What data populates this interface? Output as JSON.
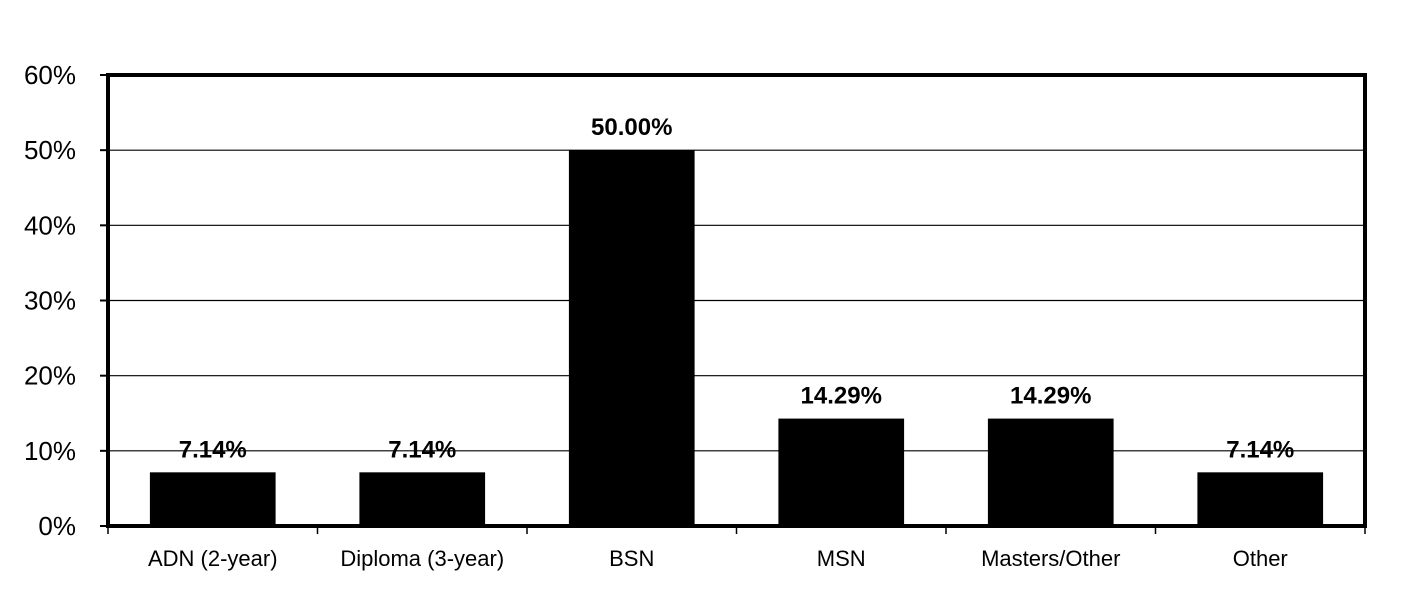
{
  "chart_data": {
    "type": "bar",
    "title": "",
    "xlabel": "",
    "ylabel": "",
    "categories": [
      "ADN (2-year)",
      "Diploma (3-year)",
      "BSN",
      "MSN",
      "Masters/Other",
      "Other"
    ],
    "values": [
      7.14,
      7.14,
      50.0,
      14.29,
      14.29,
      7.14
    ],
    "data_labels": [
      "7.14%",
      "7.14%",
      "50.00%",
      "14.29%",
      "14.29%",
      "7.14%"
    ],
    "ylim": [
      0,
      60
    ],
    "yticks": [
      0,
      10,
      20,
      30,
      40,
      50,
      60
    ],
    "ytick_labels": [
      "0%",
      "10%",
      "20%",
      "30%",
      "40%",
      "50%",
      "60%"
    ],
    "grid": true,
    "legend": "none",
    "colors": {
      "bar": "#000000",
      "grid": "#000000",
      "background": "#ffffff"
    }
  }
}
